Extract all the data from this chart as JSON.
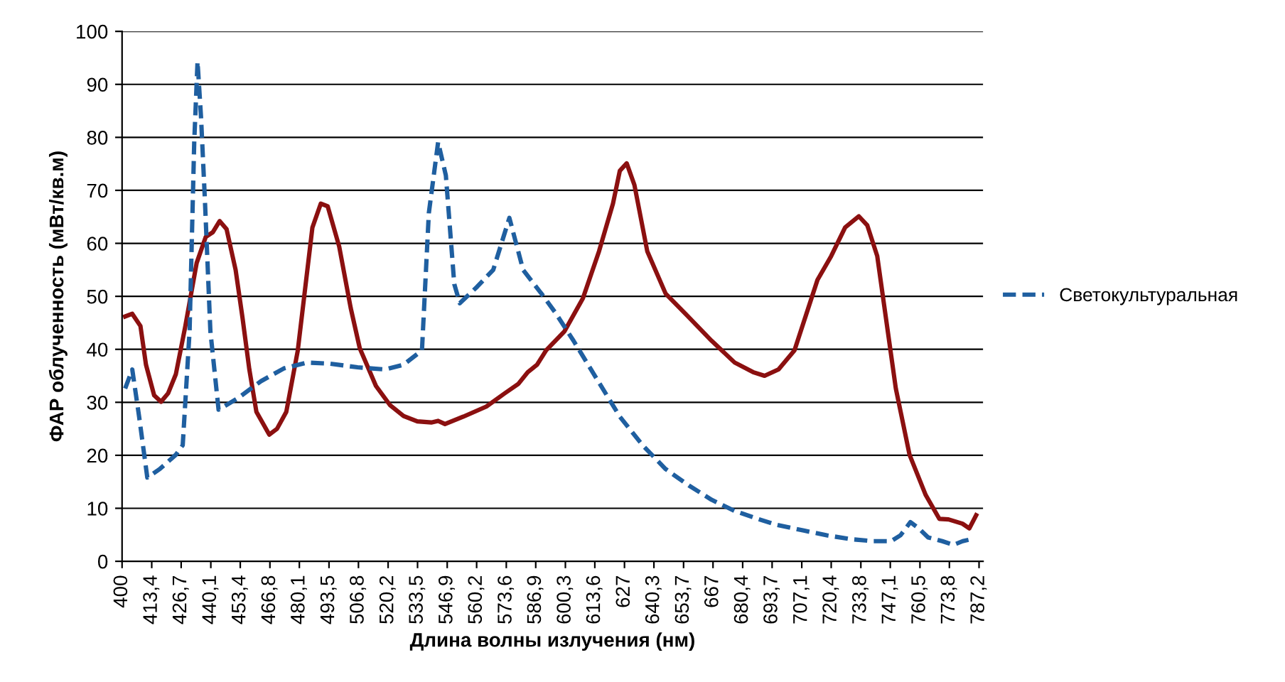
{
  "chart_data": {
    "type": "line",
    "xlabel": "Длина волны излучения (нм)",
    "ylabel": "ФАР облученность (мВт/кв.м)",
    "xlim": [
      400,
      789
    ],
    "ylim": [
      0,
      100
    ],
    "yticks": [
      0,
      10,
      20,
      30,
      40,
      50,
      60,
      70,
      80,
      90,
      100
    ],
    "xticks": [
      400,
      {
        "value": 413.4,
        "label": "413,4"
      },
      {
        "value": 426.7,
        "label": "426,7"
      },
      {
        "value": 440.1,
        "label": "440,1"
      },
      {
        "value": 453.4,
        "label": "453,4"
      },
      {
        "value": 466.8,
        "label": "466,8"
      },
      {
        "value": 480.1,
        "label": "480,1"
      },
      {
        "value": 493.5,
        "label": "493,5"
      },
      {
        "value": 506.8,
        "label": "506,8"
      },
      {
        "value": 520.2,
        "label": "520,2"
      },
      {
        "value": 533.5,
        "label": "533,5"
      },
      {
        "value": 546.9,
        "label": "546,9"
      },
      {
        "value": 560.2,
        "label": "560,2"
      },
      {
        "value": 573.6,
        "label": "573,6"
      },
      {
        "value": 586.9,
        "label": "586,9"
      },
      {
        "value": 600.3,
        "label": "600,3"
      },
      {
        "value": 613.6,
        "label": "613,6"
      },
      627,
      {
        "value": 640.3,
        "label": "640,3"
      },
      {
        "value": 653.7,
        "label": "653,7"
      },
      667,
      {
        "value": 680.4,
        "label": "680,4"
      },
      {
        "value": 693.7,
        "label": "693,7"
      },
      {
        "value": 707.1,
        "label": "707,1"
      },
      {
        "value": 720.4,
        "label": "720,4"
      },
      {
        "value": 733.8,
        "label": "733,8"
      },
      {
        "value": 747.1,
        "label": "747,1"
      },
      {
        "value": 760.5,
        "label": "760,5"
      },
      {
        "value": 773.8,
        "label": "773,8"
      },
      {
        "value": 787.2,
        "label": "787,2"
      }
    ],
    "grid": "y",
    "legend": "right",
    "series": [
      {
        "color": "#8b1010",
        "line_style": "solid",
        "x": [
          401.4,
          404.6,
          408.3,
          410.8,
          414.5,
          417.6,
          420.8,
          424.3,
          428.5,
          433.7,
          437.8,
          441.0,
          444.1,
          447.2,
          451.3,
          454.4,
          457.5,
          460.7,
          466.5,
          470.0,
          474.2,
          479.4,
          486.0,
          489.8,
          492.9,
          498.1,
          503.3,
          507.4,
          514.7,
          521.0,
          527.2,
          533.4,
          539.7,
          542.8,
          545.9,
          554.2,
          564.6,
          572.9,
          579.1,
          583.3,
          587.5,
          591.6,
          599.9,
          608.2,
          615.5,
          621.8,
          624.9,
          628.0,
          631.5,
          637.3,
          645.6,
          655.0,
          666.4,
          676.8,
          685.1,
          690.3,
          696.6,
          703.8,
          714.2,
          720.4,
          726.7,
          732.9,
          736.7,
          741.2,
          749.6,
          755.8,
          763.1,
          769.3,
          773.4,
          779.7,
          782.8,
          785.9
        ],
        "values": [
          46.2,
          46.7,
          44.4,
          37.1,
          31.3,
          30.1,
          31.7,
          35.3,
          44.2,
          56.3,
          61.2,
          62.1,
          64.2,
          62.7,
          55.0,
          46.0,
          36.2,
          28.2,
          23.9,
          25.0,
          28.2,
          39.8,
          63.0,
          67.5,
          67.0,
          59.4,
          47.8,
          40.2,
          33.1,
          29.5,
          27.4,
          26.4,
          26.2,
          26.5,
          25.9,
          27.3,
          29.2,
          31.7,
          33.5,
          35.7,
          37.1,
          39.8,
          43.4,
          49.6,
          58.5,
          67.5,
          73.7,
          75.1,
          71.0,
          58.5,
          50.5,
          46.5,
          41.6,
          37.5,
          35.7,
          35.0,
          36.2,
          39.8,
          53.1,
          57.6,
          63.0,
          65.1,
          63.4,
          57.6,
          32.6,
          20.1,
          12.5,
          8.0,
          7.9,
          7.1,
          6.2,
          8.7
        ]
      },
      {
        "name": "Светокультуральная",
        "color": "#1f5fa0",
        "line_style": "dashed",
        "x": [
          401.4,
          404.6,
          407.7,
          411.4,
          417.0,
          424.3,
          427.4,
          430.5,
          432.6,
          434.1,
          435.7,
          437.4,
          439.9,
          443.6,
          452.4,
          462.8,
          473.1,
          483.5,
          494.0,
          506.4,
          518.9,
          527.2,
          535.5,
          538.6,
          542.8,
          546.3,
          550.1,
          552.6,
          560.4,
          567.7,
          575.0,
          581.2,
          589.5,
          595.8,
          604.0,
          614.5,
          624.9,
          635.2,
          645.6,
          656.1,
          666.4,
          676.8,
          687.2,
          695.5,
          708.0,
          718.4,
          728.8,
          739.2,
          747.5,
          751.7,
          756.2,
          760.0,
          764.2,
          770.6,
          775.7,
          779.8,
          784.0
        ],
        "values": [
          32.6,
          36.2,
          27.3,
          15.8,
          17.4,
          20.1,
          21.9,
          43.4,
          79.1,
          94.3,
          83.6,
          68.4,
          43.4,
          28.6,
          30.8,
          34.0,
          36.4,
          37.5,
          37.3,
          36.6,
          36.2,
          37.1,
          39.8,
          65.7,
          79.1,
          72.8,
          52.3,
          48.7,
          51.8,
          55.0,
          64.8,
          55.0,
          50.5,
          46.9,
          41.6,
          34.4,
          27.3,
          21.9,
          17.4,
          14.3,
          11.6,
          9.5,
          8.0,
          6.9,
          5.8,
          4.9,
          4.2,
          3.8,
          3.8,
          4.9,
          7.4,
          6.2,
          4.5,
          3.8,
          3.1,
          3.8,
          4.2
        ]
      }
    ]
  }
}
